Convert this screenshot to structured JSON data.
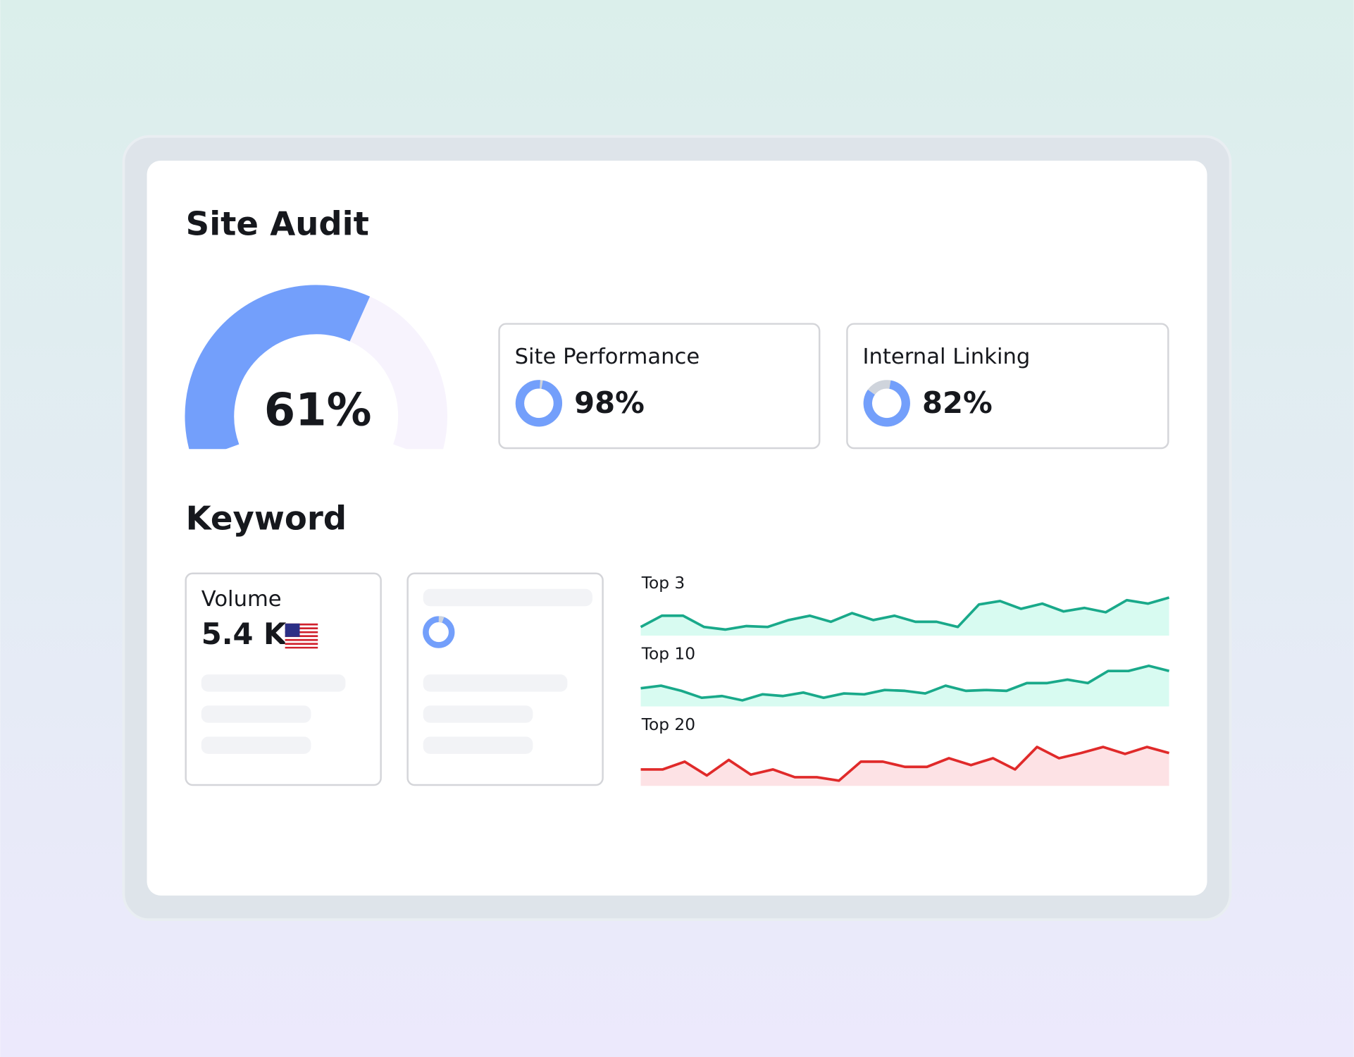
{
  "site_audit": {
    "title": "Site Audit",
    "score": {
      "value": 61,
      "label": "61%"
    },
    "cards": [
      {
        "title": "Site Performance",
        "value": 98,
        "label": "98%"
      },
      {
        "title": "Internal Linking",
        "value": 82,
        "label": "82%"
      }
    ]
  },
  "keyword": {
    "title": "Keyword",
    "volume": {
      "title": "Volume",
      "label": "5.4 K"
    },
    "trends": [
      {
        "name": "Top 3",
        "color": "#19a98a",
        "fill": "#d8fbf1",
        "values": [
          10,
          23,
          23,
          10,
          7,
          11,
          10,
          18,
          23,
          16,
          26,
          18,
          23,
          16,
          16,
          10,
          36,
          40,
          31,
          37,
          28,
          32,
          27,
          41,
          37,
          44
        ]
      },
      {
        "name": "Top 10",
        "color": "#19a98a",
        "fill": "#d8fbf1",
        "values": [
          21,
          24,
          18,
          10,
          12,
          7,
          14,
          12,
          16,
          10,
          15,
          14,
          19,
          18,
          15,
          24,
          18,
          19,
          18,
          27,
          27,
          31,
          27,
          41,
          41,
          47,
          41
        ]
      },
      {
        "name": "Top 20",
        "color": "#e02a2a",
        "fill": "#fde2e5",
        "values": [
          19,
          19,
          28,
          12,
          30,
          13,
          19,
          10,
          10,
          6,
          28,
          28,
          22,
          22,
          32,
          24,
          32,
          19,
          45,
          32,
          38,
          45,
          37,
          45,
          38
        ]
      }
    ]
  }
}
